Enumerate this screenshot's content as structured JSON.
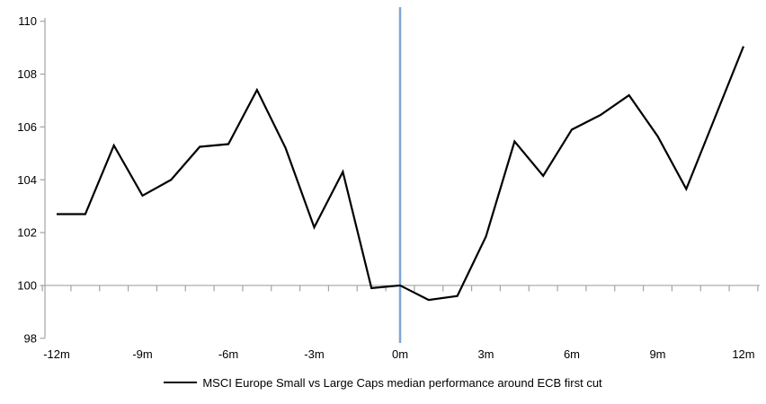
{
  "chart_data": {
    "type": "line",
    "title": "",
    "xlabel": "",
    "ylabel": "",
    "x_months": [
      -12,
      -11,
      -10,
      -9,
      -8,
      -7,
      -6,
      -5,
      -4,
      -3,
      -2,
      -1,
      0,
      1,
      2,
      3,
      4,
      5,
      6,
      7,
      8,
      9,
      10,
      11,
      12
    ],
    "x_tick_labels": [
      "-12m",
      "-9m",
      "-6m",
      "-3m",
      "0m",
      "3m",
      "6m",
      "9m",
      "12m"
    ],
    "x_tick_positions": [
      -12,
      -9,
      -6,
      -3,
      0,
      3,
      6,
      9,
      12
    ],
    "y_ticks": [
      98,
      100,
      102,
      104,
      106,
      108,
      110
    ],
    "ylim": [
      98,
      110
    ],
    "baseline_value": 100,
    "event_vline_x": 0,
    "grid": "off",
    "legend_position": "bottom",
    "series": [
      {
        "name": "MSCI Europe Small vs Large Caps median performance around ECB first cut",
        "color": "#000000",
        "values": [
          102.7,
          102.7,
          105.3,
          103.4,
          104.0,
          105.25,
          105.35,
          107.4,
          105.2,
          102.2,
          104.3,
          99.9,
          100.0,
          99.45,
          99.6,
          101.85,
          105.45,
          104.15,
          105.9,
          106.45,
          107.2,
          105.65,
          103.65,
          106.35,
          109.05
        ]
      }
    ]
  },
  "legend": {
    "label": "MSCI Europe Small vs Large Caps median performance around ECB first cut"
  },
  "colors": {
    "series_line": "#000000",
    "event_line": "#7EA6D4",
    "axis": "#A3A3A3",
    "baseline": "#A3A3A3",
    "label_text": "#000000",
    "background": "#FFFFFF"
  }
}
